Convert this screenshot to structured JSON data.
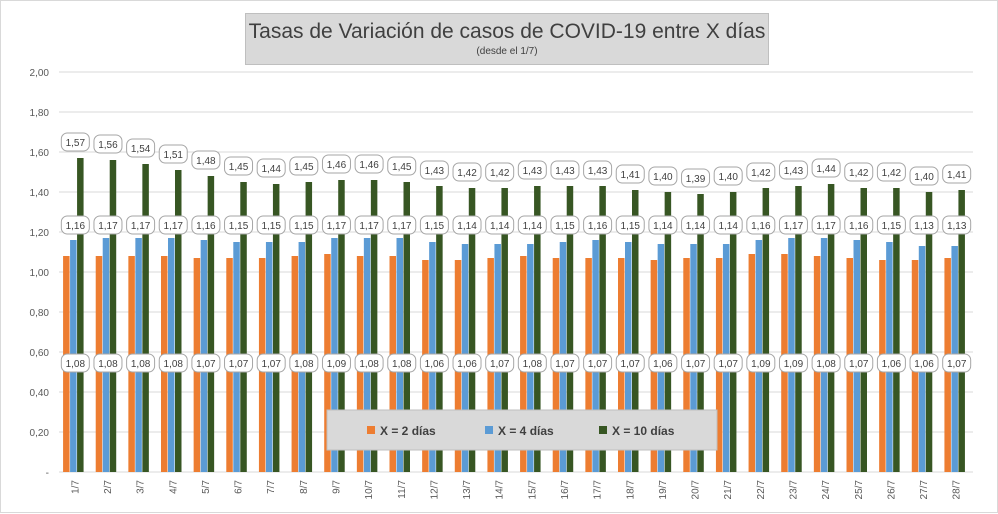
{
  "chart_data": {
    "type": "bar",
    "title": "Tasas de Variación de casos de COVID-19 entre X días",
    "subtitle": "(desde el 1/7)",
    "categories": [
      "1/7",
      "2/7",
      "3/7",
      "4/7",
      "5/7",
      "6/7",
      "7/7",
      "8/7",
      "9/7",
      "10/7",
      "11/7",
      "12/7",
      "13/7",
      "14/7",
      "15/7",
      "16/7",
      "17/7",
      "18/7",
      "19/7",
      "20/7",
      "21/7",
      "22/7",
      "23/7",
      "24/7",
      "25/7",
      "26/7",
      "27/7",
      "28/7"
    ],
    "series": [
      {
        "name": "X = 2 días",
        "color": "#ed7d31",
        "values": [
          1.08,
          1.08,
          1.08,
          1.08,
          1.07,
          1.07,
          1.07,
          1.08,
          1.09,
          1.08,
          1.08,
          1.06,
          1.06,
          1.07,
          1.08,
          1.07,
          1.07,
          1.07,
          1.06,
          1.07,
          1.07,
          1.09,
          1.09,
          1.08,
          1.07,
          1.06,
          1.06,
          1.07
        ]
      },
      {
        "name": "X = 4 días",
        "color": "#5b9bd5",
        "values": [
          1.16,
          1.17,
          1.17,
          1.17,
          1.16,
          1.15,
          1.15,
          1.15,
          1.17,
          1.17,
          1.17,
          1.15,
          1.14,
          1.14,
          1.14,
          1.15,
          1.16,
          1.15,
          1.14,
          1.14,
          1.14,
          1.16,
          1.17,
          1.17,
          1.16,
          1.15,
          1.13,
          1.13
        ]
      },
      {
        "name": "X = 10 días",
        "color": "#375623",
        "values": [
          1.57,
          1.56,
          1.54,
          1.51,
          1.48,
          1.45,
          1.44,
          1.45,
          1.46,
          1.46,
          1.45,
          1.43,
          1.42,
          1.42,
          1.43,
          1.43,
          1.43,
          1.41,
          1.4,
          1.39,
          1.4,
          1.42,
          1.43,
          1.44,
          1.42,
          1.42,
          1.4,
          1.41
        ]
      }
    ],
    "y_ticks": [
      "-",
      "0,20",
      "0,40",
      "0,60",
      "0,80",
      "1,00",
      "1,20",
      "1,40",
      "1,60",
      "1,80",
      "2,00"
    ],
    "ylim": [
      0,
      2
    ],
    "grid": true,
    "legend_position": "bottom-right, inside plot"
  }
}
